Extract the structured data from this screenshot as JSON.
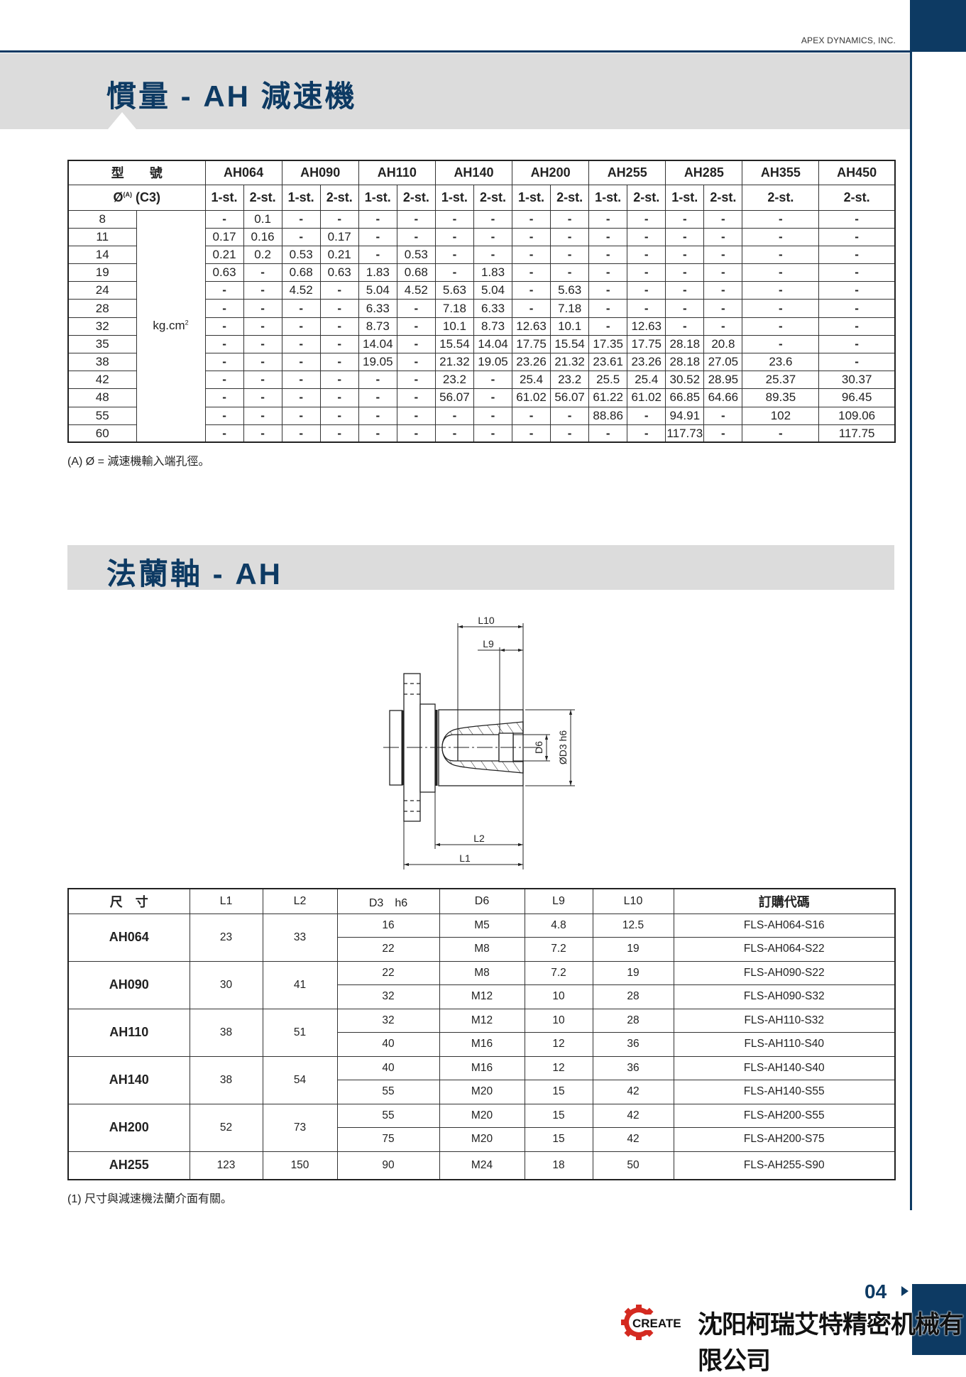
{
  "header": {
    "company_en": "APEX DYNAMICS, INC.",
    "accent": "#0d3a63"
  },
  "section1": {
    "title": "慣量 - AH 減速機"
  },
  "inertia_table": {
    "model_label": "型　　號",
    "bore_label": "Ø",
    "bore_sup": "(A)",
    "bore_suffix": " (C3)",
    "unit": "kg.cm",
    "unit_sup": "2",
    "models": [
      {
        "name": "AH064",
        "stages": [
          "1-st.",
          "2-st."
        ]
      },
      {
        "name": "AH090",
        "stages": [
          "1-st.",
          "2-st."
        ]
      },
      {
        "name": "AH110",
        "stages": [
          "1-st.",
          "2-st."
        ]
      },
      {
        "name": "AH140",
        "stages": [
          "1-st.",
          "2-st."
        ]
      },
      {
        "name": "AH200",
        "stages": [
          "1-st.",
          "2-st."
        ]
      },
      {
        "name": "AH255",
        "stages": [
          "1-st.",
          "2-st."
        ]
      },
      {
        "name": "AH285",
        "stages": [
          "1-st.",
          "2-st."
        ]
      },
      {
        "name": "AH355",
        "stages": [
          "2-st."
        ]
      },
      {
        "name": "AH450",
        "stages": [
          "2-st."
        ]
      }
    ],
    "rows": [
      {
        "bore": "8",
        "values": [
          "-",
          "0.1",
          "-",
          "-",
          "-",
          "-",
          "-",
          "-",
          "-",
          "-",
          "-",
          "-",
          "-",
          "-",
          "-",
          "-"
        ]
      },
      {
        "bore": "11",
        "values": [
          "0.17",
          "0.16",
          "-",
          "0.17",
          "-",
          "-",
          "-",
          "-",
          "-",
          "-",
          "-",
          "-",
          "-",
          "-",
          "-",
          "-"
        ]
      },
      {
        "bore": "14",
        "values": [
          "0.21",
          "0.2",
          "0.53",
          "0.21",
          "-",
          "0.53",
          "-",
          "-",
          "-",
          "-",
          "-",
          "-",
          "-",
          "-",
          "-",
          "-"
        ]
      },
      {
        "bore": "19",
        "values": [
          "0.63",
          "-",
          "0.68",
          "0.63",
          "1.83",
          "0.68",
          "-",
          "1.83",
          "-",
          "-",
          "-",
          "-",
          "-",
          "-",
          "-",
          "-"
        ]
      },
      {
        "bore": "24",
        "values": [
          "-",
          "-",
          "4.52",
          "-",
          "5.04",
          "4.52",
          "5.63",
          "5.04",
          "-",
          "5.63",
          "-",
          "-",
          "-",
          "-",
          "-",
          "-"
        ]
      },
      {
        "bore": "28",
        "values": [
          "-",
          "-",
          "-",
          "-",
          "6.33",
          "-",
          "7.18",
          "6.33",
          "-",
          "7.18",
          "-",
          "-",
          "-",
          "-",
          "-",
          "-"
        ]
      },
      {
        "bore": "32",
        "values": [
          "-",
          "-",
          "-",
          "-",
          "8.73",
          "-",
          "10.1",
          "8.73",
          "12.63",
          "10.1",
          "-",
          "12.63",
          "-",
          "-",
          "-",
          "-"
        ]
      },
      {
        "bore": "35",
        "values": [
          "-",
          "-",
          "-",
          "-",
          "14.04",
          "-",
          "15.54",
          "14.04",
          "17.75",
          "15.54",
          "17.35",
          "17.75",
          "28.18",
          "20.8",
          "-",
          "-"
        ]
      },
      {
        "bore": "38",
        "values": [
          "-",
          "-",
          "-",
          "-",
          "19.05",
          "-",
          "21.32",
          "19.05",
          "23.26",
          "21.32",
          "23.61",
          "23.26",
          "28.18",
          "27.05",
          "23.6",
          "-"
        ]
      },
      {
        "bore": "42",
        "values": [
          "-",
          "-",
          "-",
          "-",
          "-",
          "-",
          "23.2",
          "-",
          "25.4",
          "23.2",
          "25.5",
          "25.4",
          "30.52",
          "28.95",
          "25.37",
          "30.37"
        ]
      },
      {
        "bore": "48",
        "values": [
          "-",
          "-",
          "-",
          "-",
          "-",
          "-",
          "56.07",
          "-",
          "61.02",
          "56.07",
          "61.22",
          "61.02",
          "66.85",
          "64.66",
          "89.35",
          "96.45"
        ]
      },
      {
        "bore": "55",
        "values": [
          "-",
          "-",
          "-",
          "-",
          "-",
          "-",
          "-",
          "-",
          "-",
          "-",
          "88.86",
          "-",
          "94.91",
          "-",
          "102",
          "109.06"
        ]
      },
      {
        "bore": "60",
        "values": [
          "-",
          "-",
          "-",
          "-",
          "-",
          "-",
          "-",
          "-",
          "-",
          "-",
          "-",
          "-",
          "117.73",
          "-",
          "-",
          "117.75"
        ]
      }
    ],
    "note": "(A)  Ø = 減速機輸入端孔徑。"
  },
  "section2": {
    "title": "法蘭軸 - AH"
  },
  "drawing": {
    "labels": {
      "l10": "L10",
      "l9": "L9",
      "l2": "L2",
      "l1": "L1",
      "d6": "D6",
      "d3": "ØD3 h6"
    }
  },
  "flange_table": {
    "headers": [
      "尺　寸",
      "L1",
      "L2",
      "D3　h6",
      "D6",
      "L9",
      "L10",
      "訂購代碼"
    ],
    "groups": [
      {
        "model": "AH064",
        "l1": "23",
        "l2": "33",
        "rows": [
          [
            "16",
            "M5",
            "4.8",
            "12.5",
            "FLS-AH064-S16"
          ],
          [
            "22",
            "M8",
            "7.2",
            "19",
            "FLS-AH064-S22"
          ]
        ]
      },
      {
        "model": "AH090",
        "l1": "30",
        "l2": "41",
        "rows": [
          [
            "22",
            "M8",
            "7.2",
            "19",
            "FLS-AH090-S22"
          ],
          [
            "32",
            "M12",
            "10",
            "28",
            "FLS-AH090-S32"
          ]
        ]
      },
      {
        "model": "AH110",
        "l1": "38",
        "l2": "51",
        "rows": [
          [
            "32",
            "M12",
            "10",
            "28",
            "FLS-AH110-S32"
          ],
          [
            "40",
            "M16",
            "12",
            "36",
            "FLS-AH110-S40"
          ]
        ]
      },
      {
        "model": "AH140",
        "l1": "38",
        "l2": "54",
        "rows": [
          [
            "40",
            "M16",
            "12",
            "36",
            "FLS-AH140-S40"
          ],
          [
            "55",
            "M20",
            "15",
            "42",
            "FLS-AH140-S55"
          ]
        ]
      },
      {
        "model": "AH200",
        "l1": "52",
        "l2": "73",
        "rows": [
          [
            "55",
            "M20",
            "15",
            "42",
            "FLS-AH200-S55"
          ],
          [
            "75",
            "M20",
            "15",
            "42",
            "FLS-AH200-S75"
          ]
        ]
      },
      {
        "model": "AH255",
        "l1": "123",
        "l2": "150",
        "rows": [
          [
            "90",
            "M24",
            "18",
            "50",
            "FLS-AH255-S90"
          ]
        ]
      }
    ],
    "note": "(1)  尺寸與減速機法蘭介面有關。"
  },
  "footer": {
    "page": "04",
    "logo_text": "CREATE",
    "logo_color": "#d42a20",
    "company_cn": "沈阳柯瑞艾特精密机械有限公司"
  }
}
